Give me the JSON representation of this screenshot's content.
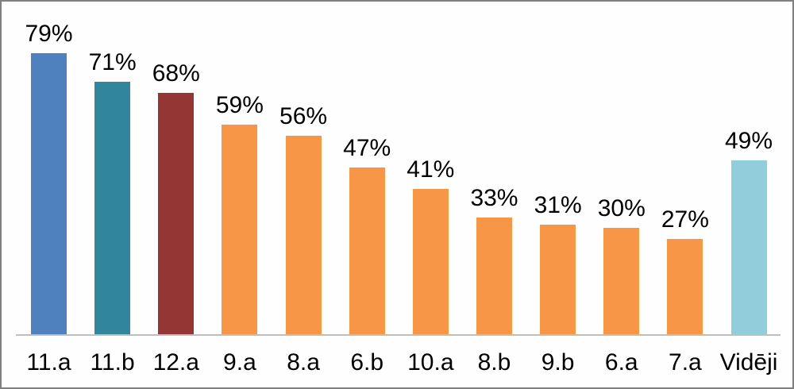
{
  "chart_data": {
    "type": "bar",
    "title": "",
    "xlabel": "",
    "ylabel": "",
    "categories": [
      "11.a",
      "11.b",
      "12.a",
      "9.a",
      "8.a",
      "6.b",
      "10.a",
      "8.b",
      "9.b",
      "6.a",
      "7.a",
      "Vidēji"
    ],
    "values": [
      79,
      71,
      68,
      59,
      56,
      47,
      41,
      33,
      31,
      30,
      27,
      49
    ],
    "value_labels": [
      "79%",
      "71%",
      "68%",
      "59%",
      "56%",
      "47%",
      "41%",
      "33%",
      "31%",
      "30%",
      "27%",
      "49%"
    ],
    "bar_colors": [
      "#4e81bd",
      "#31859c",
      "#943634",
      "#f79646",
      "#f79646",
      "#f79646",
      "#f79646",
      "#f79646",
      "#f79646",
      "#f79646",
      "#f79646",
      "#92cddc"
    ],
    "ylim": [
      0,
      90
    ],
    "grid": false,
    "legend": null,
    "value_labels_shown": true
  },
  "colors": {
    "background": "#ffffff",
    "frame_border": "#7f7f7f",
    "axis_line": "#bfbfbf",
    "label_text": "#000000",
    "accent_blue": "#4e81bd",
    "accent_teal": "#31859c",
    "accent_dark_red": "#943634",
    "accent_orange": "#f79646",
    "accent_light_blue": "#92cddc"
  }
}
